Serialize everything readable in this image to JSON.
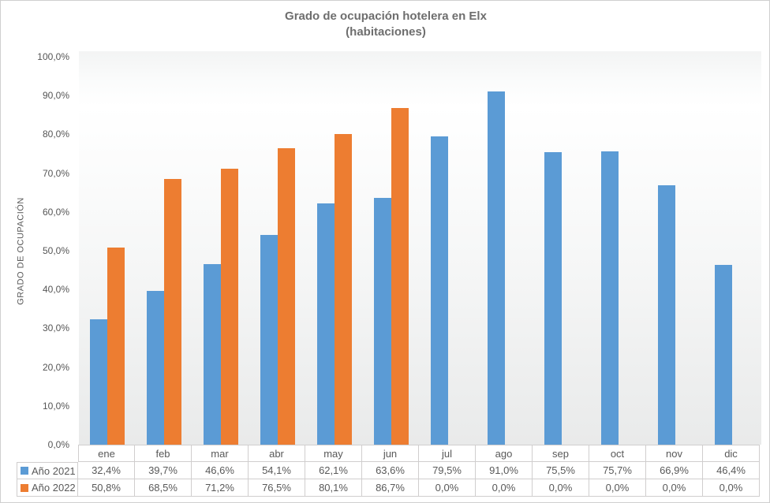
{
  "title": {
    "line1": "Grado de ocupación hotelera en Elx",
    "line2": "(habitaciones)"
  },
  "y_axis": {
    "title": "GRADO DE OCUPACIÓN",
    "ticks_top_to_bottom": [
      "100,0%",
      "90,0%",
      "80,0%",
      "70,0%",
      "60,0%",
      "50,0%",
      "40,0%",
      "30,0%",
      "20,0%",
      "10,0%",
      "0,0%"
    ]
  },
  "colors": {
    "series_2021": "#5B9BD5",
    "series_2022": "#ED7D31",
    "text": "#595959",
    "table_border": "#D0CECE",
    "plot_bottom_fill": "#E9EAEA"
  },
  "chart_data": {
    "type": "bar",
    "title": "Grado de ocupación hotelera en Elx (habitaciones)",
    "ylabel": "GRADO DE OCUPACIÓN",
    "ylim": [
      0,
      100
    ],
    "grid": false,
    "legend_position": "data-table-left-keys",
    "categories": [
      "ene",
      "feb",
      "mar",
      "abr",
      "may",
      "jun",
      "jul",
      "ago",
      "sep",
      "oct",
      "nov",
      "dic"
    ],
    "series": [
      {
        "name": "Año 2021",
        "color": "#5B9BD5",
        "values": [
          32.4,
          39.7,
          46.6,
          54.1,
          62.1,
          63.6,
          79.5,
          91.0,
          75.5,
          75.7,
          66.9,
          46.4
        ],
        "labels": [
          "32,4%",
          "39,7%",
          "46,6%",
          "54,1%",
          "62,1%",
          "63,6%",
          "79,5%",
          "91,0%",
          "75,5%",
          "75,7%",
          "66,9%",
          "46,4%"
        ]
      },
      {
        "name": "Año 2022",
        "color": "#ED7D31",
        "values": [
          50.8,
          68.5,
          71.2,
          76.5,
          80.1,
          86.7,
          0,
          0,
          0,
          0,
          0,
          0
        ],
        "labels": [
          "50,8%",
          "68,5%",
          "71,2%",
          "76,5%",
          "80,1%",
          "86,7%",
          "0,0%",
          "0,0%",
          "0,0%",
          "0,0%",
          "0,0%",
          "0,0%"
        ]
      }
    ]
  }
}
